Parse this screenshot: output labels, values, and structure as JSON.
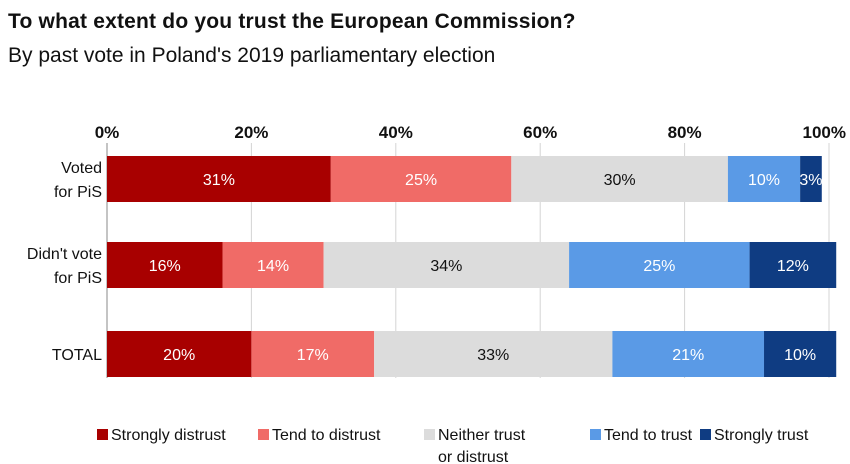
{
  "title": "To what extent do you trust the European Commission?",
  "subtitle": "By past vote in Poland's 2019 parliamentary election",
  "chart_data": {
    "type": "bar",
    "orientation": "horizontal",
    "stacked": true,
    "title": "To what extent do you trust the European Commission?",
    "subtitle": "By past vote in Poland's 2019 parliamentary election",
    "xlim": [
      0,
      100
    ],
    "x_ticks": [
      "0%",
      "20%",
      "40%",
      "60%",
      "80%",
      "100%"
    ],
    "x_axis_position": "top",
    "grid": true,
    "legend_position": "bottom",
    "categories": [
      [
        "Voted",
        "for PiS"
      ],
      [
        "Didn't vote",
        "for PiS"
      ],
      [
        "TOTAL"
      ]
    ],
    "series": [
      {
        "name": "Strongly distrust",
        "color": "#a80000",
        "label_color": "#ffffff",
        "values": [
          31,
          16,
          20
        ]
      },
      {
        "name": "Tend to distrust",
        "color": "#f06b67",
        "label_color": "#ffffff",
        "values": [
          25,
          14,
          17
        ]
      },
      {
        "name": "Neither trust or distrust",
        "legend_lines": [
          "Neither trust",
          "or distrust"
        ],
        "color": "#dcdcdc",
        "label_color": "#111111",
        "values": [
          30,
          34,
          33
        ]
      },
      {
        "name": "Tend to trust",
        "color": "#5a9ae6",
        "label_color": "#ffffff",
        "values": [
          10,
          25,
          21
        ]
      },
      {
        "name": "Strongly trust",
        "color": "#0f3c82",
        "label_color": "#ffffff",
        "values": [
          3,
          12,
          10
        ]
      }
    ]
  }
}
